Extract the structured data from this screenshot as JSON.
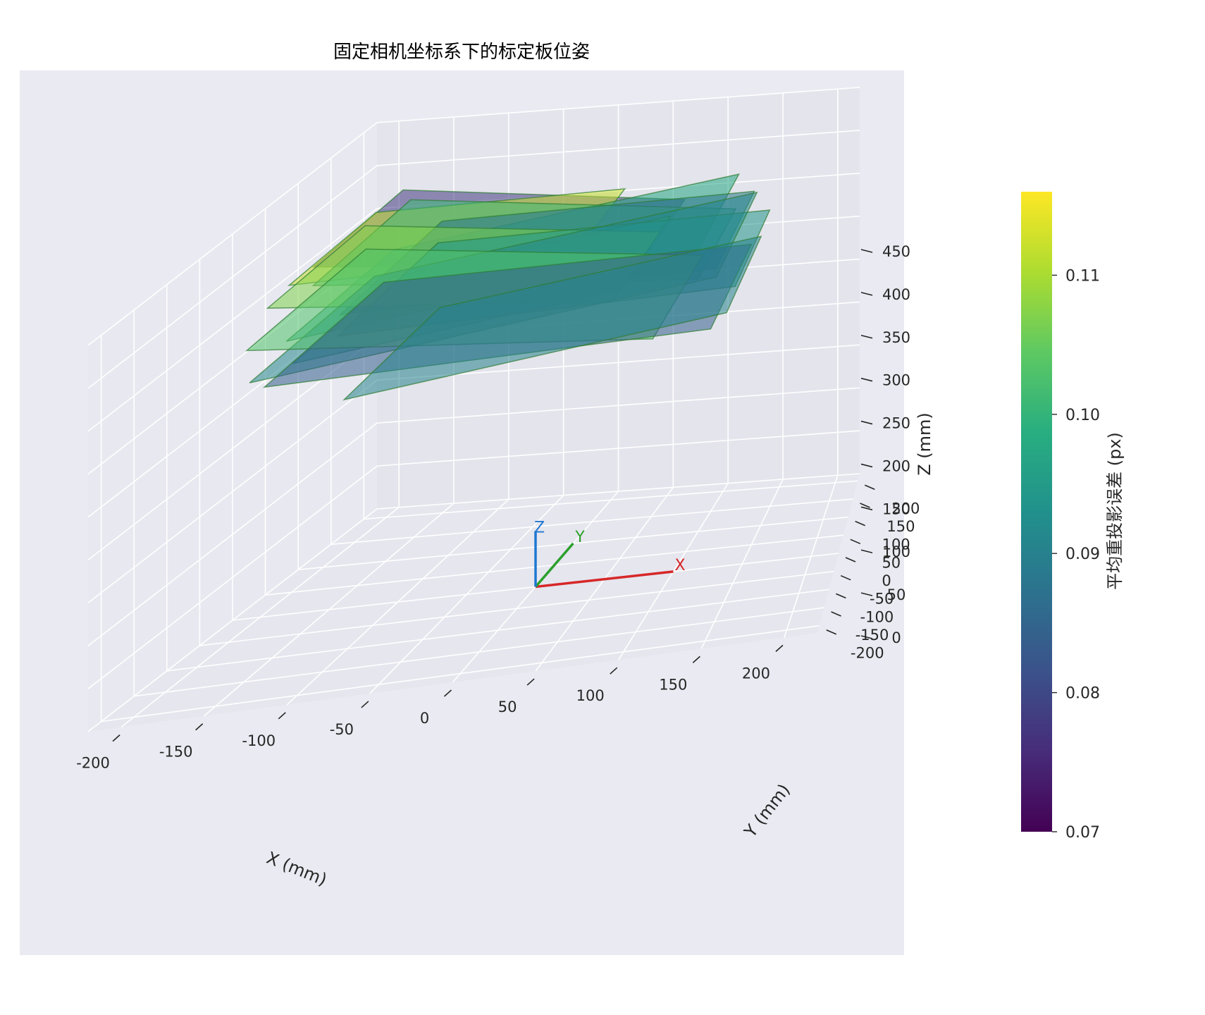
{
  "chart_data": {
    "type": "3d-surface-planes",
    "title": "固定相机坐标系下的标定板位姿",
    "xlabel": "X (mm)",
    "ylabel": "Y (mm)",
    "zlabel": "Z (mm)",
    "x_ticks": [
      "-200",
      "-150",
      "-100",
      "-50",
      "0",
      "50",
      "100",
      "150",
      "200"
    ],
    "y_ticks": [
      "-200",
      "-150",
      "-100",
      "-50",
      "0",
      "50",
      "100",
      "150",
      "200"
    ],
    "z_ticks": [
      "0",
      "50",
      "100",
      "150",
      "200",
      "250",
      "300",
      "350",
      "400",
      "450"
    ],
    "xlim": [
      -220,
      220
    ],
    "ylim": [
      -220,
      220
    ],
    "zlim": [
      0,
      450
    ],
    "grid": true,
    "colorbar": {
      "label": "平均重投影误差 (px)",
      "colormap": "viridis",
      "range": [
        0.07,
        0.116
      ],
      "ticks": [
        "0.07",
        "0.08",
        "0.09",
        "0.10",
        "0.11"
      ]
    },
    "camera_axes": {
      "x_label": "X",
      "y_label": "Y",
      "z_label": "Z",
      "x_color": "#d62728",
      "y_color": "#2ca02c",
      "z_color": "#1f77d2"
    },
    "boards": [
      {
        "cx": -30,
        "cy": 40,
        "z": 400,
        "w": 230,
        "h": 160,
        "err": 0.078
      },
      {
        "cx": -60,
        "cy": 30,
        "z": 405,
        "w": 200,
        "h": 150,
        "err": 0.112
      },
      {
        "cx": 0,
        "cy": 10,
        "z": 395,
        "w": 260,
        "h": 180,
        "err": 0.101
      },
      {
        "cx": 20,
        "cy": 0,
        "z": 390,
        "w": 250,
        "h": 200,
        "err": 0.088
      },
      {
        "cx": -10,
        "cy": 20,
        "z": 380,
        "w": 280,
        "h": 190,
        "err": 0.097
      },
      {
        "cx": -40,
        "cy": -10,
        "z": 385,
        "w": 230,
        "h": 170,
        "err": 0.107
      },
      {
        "cx": 30,
        "cy": -20,
        "z": 375,
        "w": 260,
        "h": 200,
        "err": 0.094
      },
      {
        "cx": 0,
        "cy": -30,
        "z": 370,
        "w": 300,
        "h": 220,
        "err": 0.091
      },
      {
        "cx": -20,
        "cy": -40,
        "z": 360,
        "w": 260,
        "h": 210,
        "err": 0.103
      },
      {
        "cx": 10,
        "cy": -60,
        "z": 350,
        "w": 280,
        "h": 220,
        "err": 0.084
      },
      {
        "cx": 40,
        "cy": -70,
        "z": 345,
        "w": 240,
        "h": 200,
        "err": 0.09
      },
      {
        "cx": -30,
        "cy": 0,
        "z": 355,
        "w": 220,
        "h": 180,
        "err": 0.099
      }
    ]
  }
}
